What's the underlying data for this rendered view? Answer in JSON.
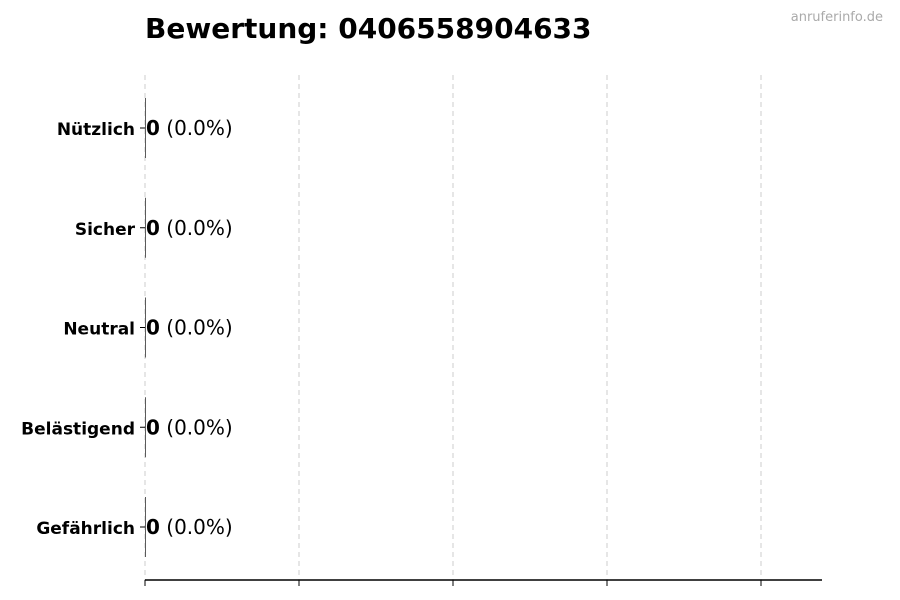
{
  "chart_data": {
    "type": "bar",
    "orientation": "horizontal",
    "title": "Bewertung: 0406558904633",
    "categories": [
      "Nützlich",
      "Sicher",
      "Neutral",
      "Belästigend",
      "Gefährlich"
    ],
    "values": [
      0,
      0,
      0,
      0,
      0
    ],
    "value_labels": [
      "0",
      "0",
      "0",
      "0",
      "0"
    ],
    "percent_labels": [
      "(0.0%)",
      "(0.0%)",
      "(0.0%)",
      "(0.0%)",
      "(0.0%)"
    ],
    "xlabel": "",
    "ylabel": "",
    "x_ticks_count": 5,
    "x_tick_labels_shown": false,
    "grid": "vertical dashed",
    "bar_edge_color": "#333333",
    "grid_color": "#cccccc"
  },
  "watermark": "anruferinfo.de"
}
